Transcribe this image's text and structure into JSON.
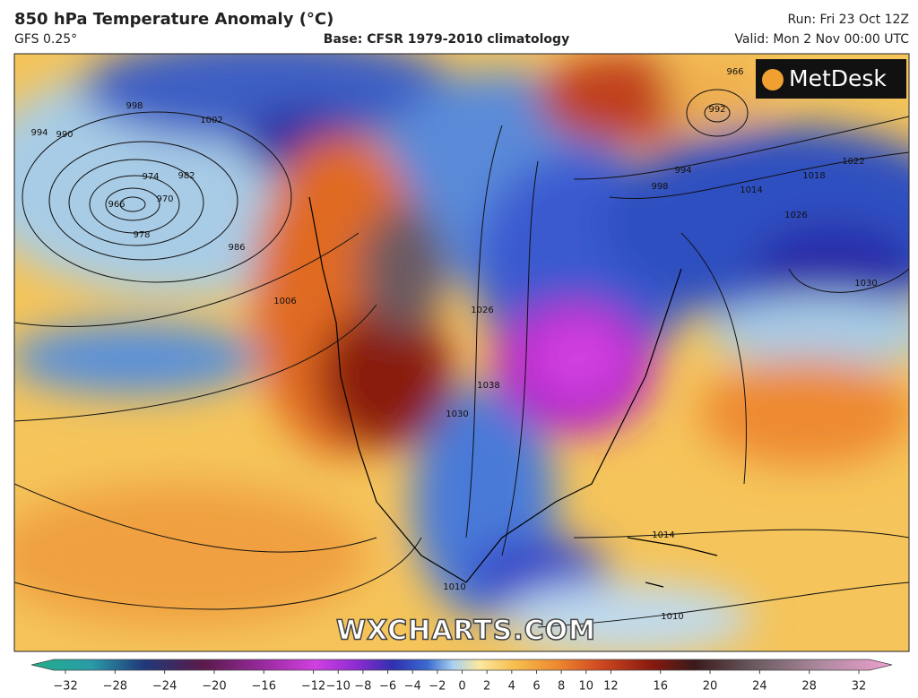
{
  "header": {
    "title": "850 hPa Temperature Anomaly (°C)",
    "model": "GFS 0.25°",
    "base": "Base: CFSR 1979-2010 climatology",
    "run": "Run: Fri 23 Oct 12Z",
    "valid": "Valid: Mon 2 Nov 00:00 UTC"
  },
  "logo": "MetDesk",
  "watermark": "WXCHARTS.COM",
  "isobar_labels": [
    998,
    994,
    990,
    1002,
    982,
    974,
    970,
    966,
    978,
    986,
    1006,
    1026,
    1038,
    1030,
    966,
    992,
    994,
    998,
    1014,
    1018,
    1022,
    1026,
    1030,
    1014,
    1010,
    1010
  ],
  "colorbar": {
    "ticks": [
      {
        "value": -32,
        "label": "−32"
      },
      {
        "value": -28,
        "label": "−28"
      },
      {
        "value": -24,
        "label": "−24"
      },
      {
        "value": -20,
        "label": "−20"
      },
      {
        "value": -16,
        "label": "−16"
      },
      {
        "value": -12,
        "label": "−12"
      },
      {
        "value": -10,
        "label": "−10"
      },
      {
        "value": -8,
        "label": "−8"
      },
      {
        "value": -6,
        "label": "−6"
      },
      {
        "value": -4,
        "label": "−4"
      },
      {
        "value": -2,
        "label": "−2"
      },
      0,
      2,
      4,
      6,
      8,
      10,
      12,
      16,
      20,
      24,
      28,
      32
    ]
  }
}
